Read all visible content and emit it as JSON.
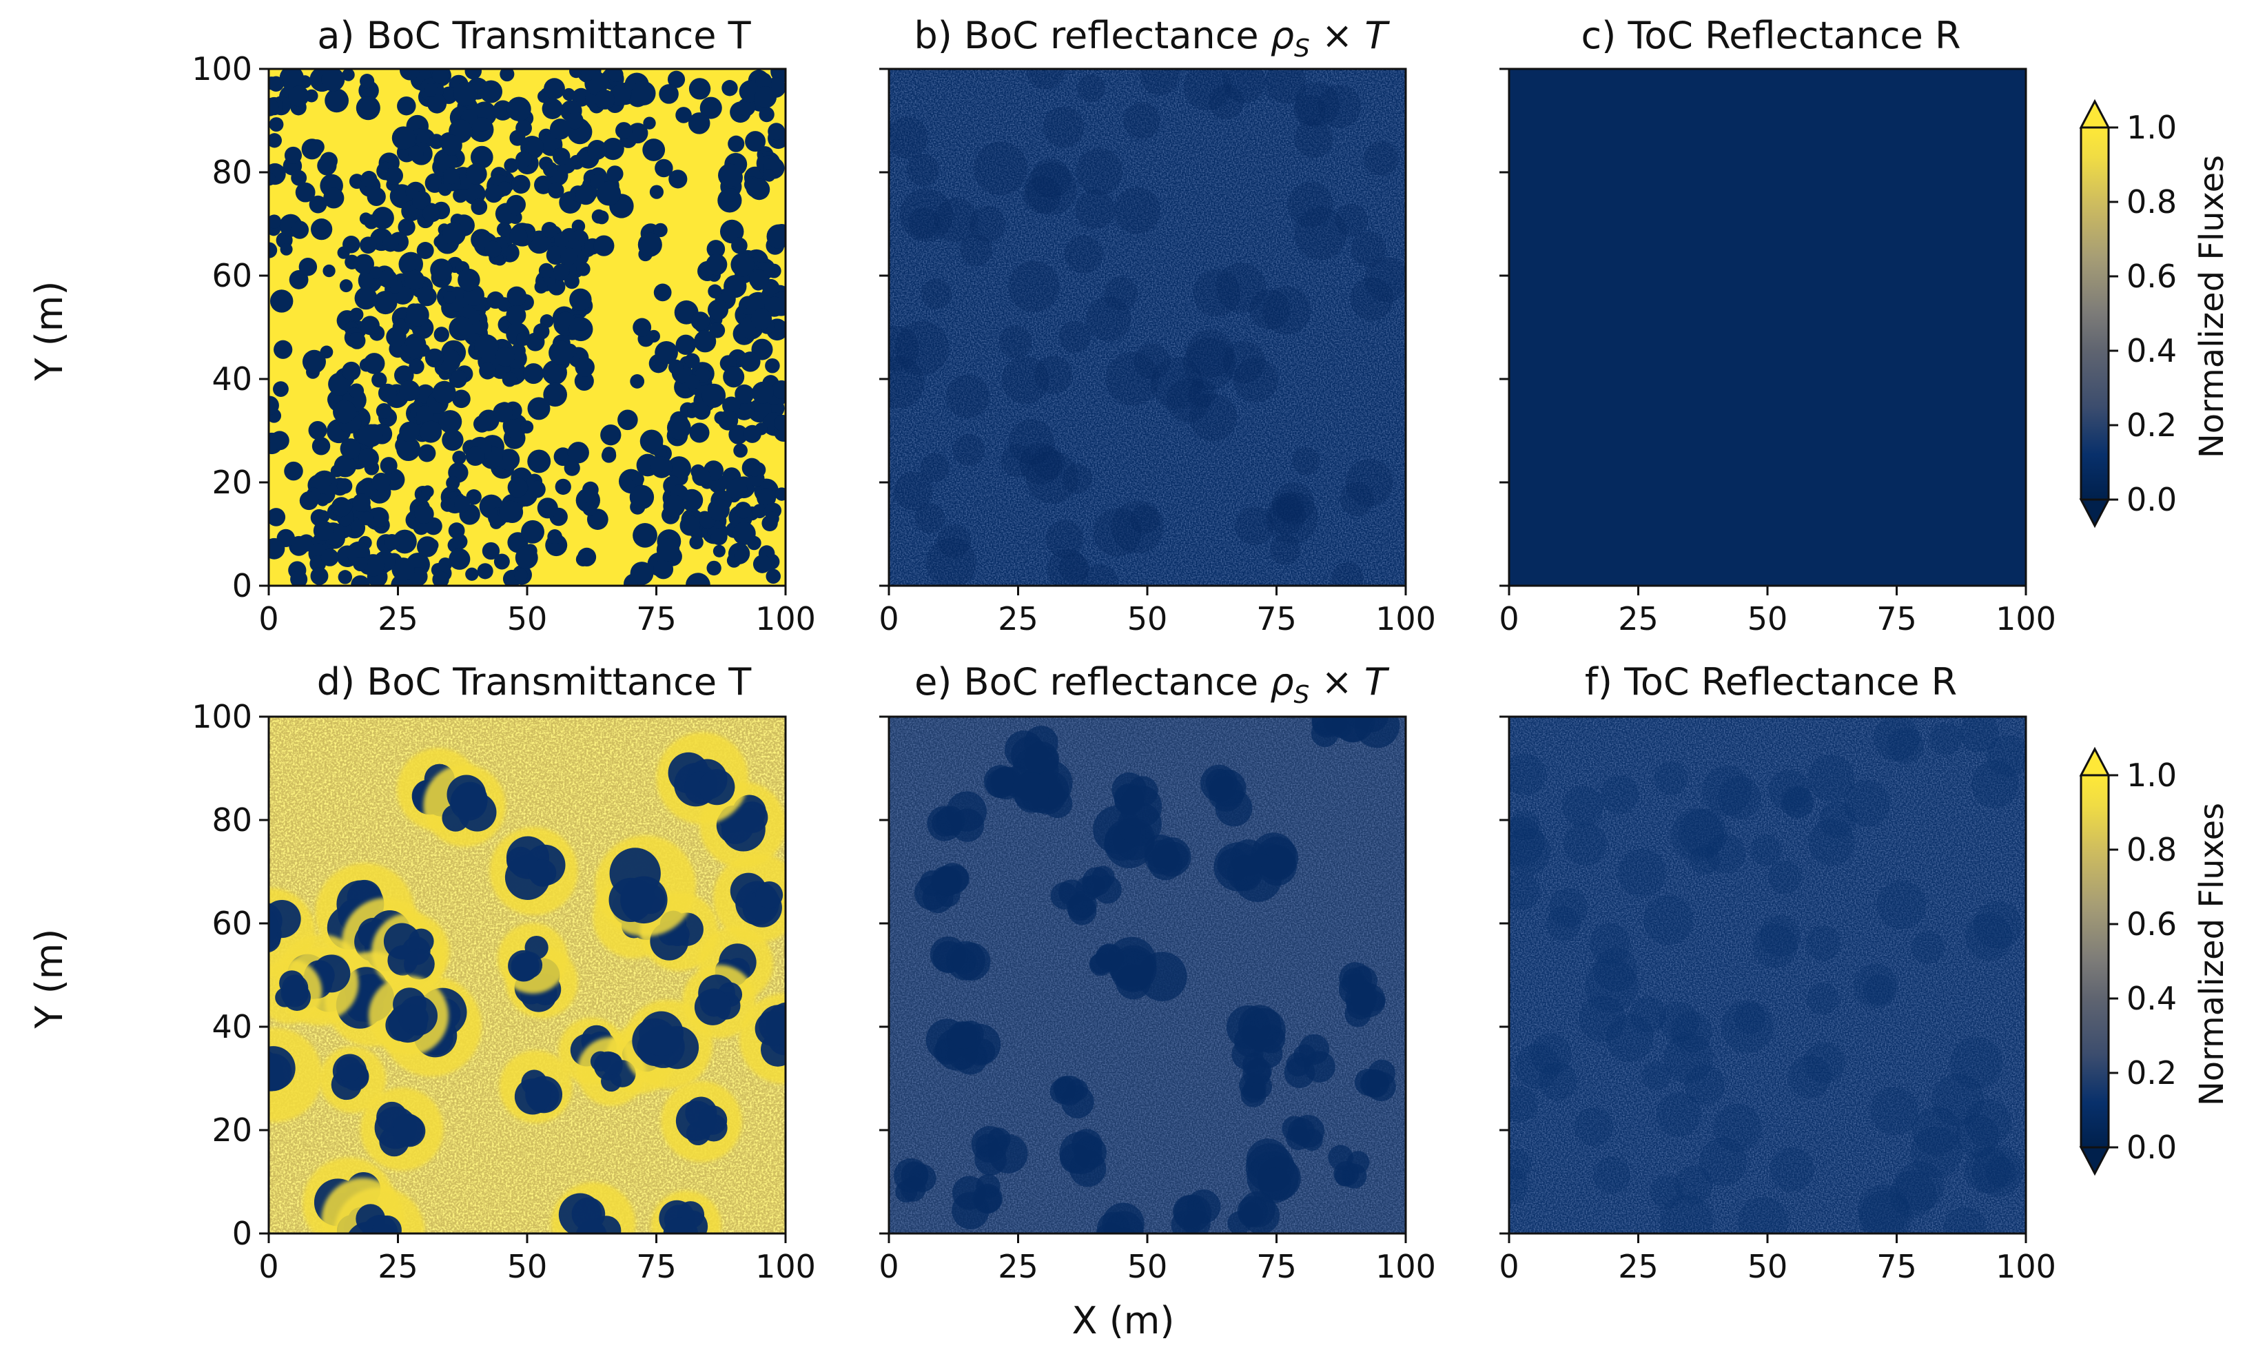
{
  "chart_data": {
    "type": "heatmap",
    "colormap": "cividis",
    "colors": {
      "low": "#00204c",
      "mid": "#7c7b78",
      "high": "#fee838"
    },
    "xlabel": "X (m)",
    "ylabel": "Y (m)",
    "xlim": [
      0,
      100
    ],
    "ylim": [
      0,
      100
    ],
    "xticks": [
      "0",
      "25",
      "50",
      "75",
      "100"
    ],
    "yticks": [
      "0",
      "20",
      "40",
      "60",
      "80",
      "100"
    ],
    "colorbar": {
      "label": "Normalized Fluxes",
      "range": [
        0.0,
        1.0
      ],
      "ticks": [
        "0.0",
        "0.2",
        "0.4",
        "0.6",
        "0.8",
        "1.0"
      ],
      "extend": "both"
    },
    "panels": [
      {
        "id": "a",
        "title": "a) BoC Transmittance T",
        "pattern": "dense crowns",
        "background_level": 1.0,
        "crown_level": 0.05,
        "mean_level": 0.5
      },
      {
        "id": "b",
        "title": "b) BoC reflectance ρ_s × T",
        "pattern": "near uniform",
        "background_level": 0.1,
        "crown_level": 0.07,
        "mean_level": 0.09
      },
      {
        "id": "c",
        "title": "c) ToC Reflectance R",
        "pattern": "uniform",
        "background_level": 0.07,
        "crown_level": 0.07,
        "mean_level": 0.07
      },
      {
        "id": "d",
        "title": "d) BoC Transmittance T",
        "pattern": "sparse crowns",
        "background_level": 0.8,
        "crown_level": 0.1,
        "mean_level": 0.65
      },
      {
        "id": "e",
        "title": "e) BoC reflectance ρ_s × T",
        "pattern": "sparse crowns",
        "background_level": 0.18,
        "crown_level": 0.08,
        "mean_level": 0.16
      },
      {
        "id": "f",
        "title": "f) ToC Reflectance R",
        "pattern": "near uniform",
        "background_level": 0.13,
        "crown_level": 0.12,
        "mean_level": 0.13
      }
    ]
  }
}
